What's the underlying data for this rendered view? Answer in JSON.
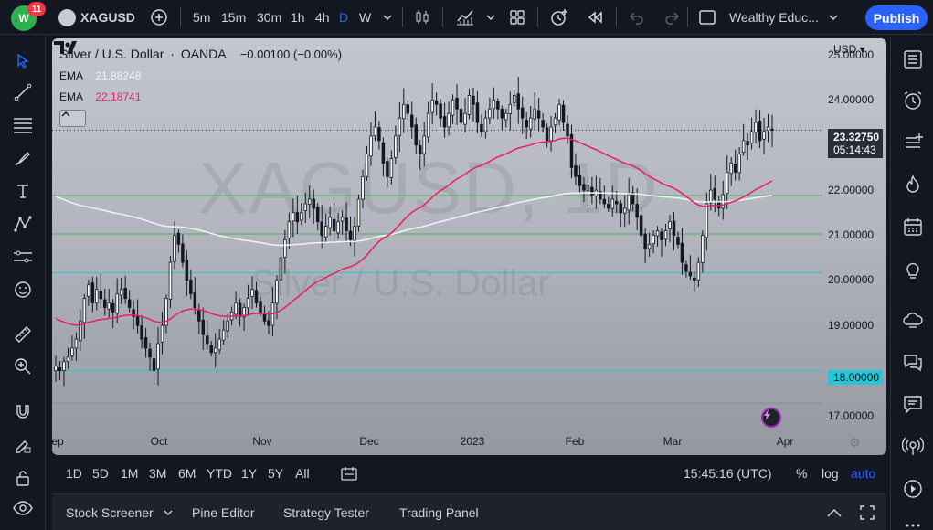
{
  "topbar": {
    "notification_count": "11",
    "symbol": "XAGUSD",
    "timeframes": [
      {
        "label": "5m",
        "active": false
      },
      {
        "label": "15m",
        "active": false
      },
      {
        "label": "30m",
        "active": false
      },
      {
        "label": "1h",
        "active": false
      },
      {
        "label": "4h",
        "active": false
      },
      {
        "label": "D",
        "active": true
      },
      {
        "label": "W",
        "active": false
      }
    ],
    "layout_name": "Wealthy Educ...",
    "publish_label": "Publish"
  },
  "legend": {
    "title": "Silver / U.S. Dollar",
    "provider": "OANDA",
    "change": "−0.00100 (−0.00%)",
    "ema1_label": "EMA",
    "ema1_value": "21.88248",
    "ema2_label": "EMA",
    "ema2_value": "22.18741"
  },
  "price_axis": {
    "currency": "USD",
    "labels": [
      "25.00000",
      "24.00000",
      "22.00000",
      "21.00000",
      "20.00000",
      "19.00000",
      "17.00000"
    ],
    "last_price": "23.32750",
    "countdown": "05:14:43",
    "tag_level": "18.00000"
  },
  "time_axis": {
    "labels": [
      "Sep",
      "Oct",
      "Nov",
      "Dec",
      "2023",
      "Feb",
      "Mar",
      "Apr"
    ]
  },
  "watermark": {
    "symbol": "XAGUSD, 1D",
    "description": "Silver / U.S. Dollar"
  },
  "range_bar": {
    "ranges": [
      "1D",
      "5D",
      "1M",
      "3M",
      "6M",
      "YTD",
      "1Y",
      "5Y",
      "All"
    ],
    "clock": "15:45:16 (UTC)",
    "percent": "%",
    "log": "log",
    "auto": "auto"
  },
  "panel_tabs": [
    "Stock Screener",
    "Pine Editor",
    "Strategy Tester",
    "Trading Panel"
  ],
  "colors": {
    "accent": "#2962ff",
    "ema_fast": "#f0f3fa",
    "ema_slow": "#e91e63",
    "level_green": "#4caf50",
    "level_cyan": "#26c6da"
  },
  "chart_data": {
    "type": "candlestick",
    "symbol": "XAGUSD",
    "interval": "1D",
    "ylim": [
      16.6,
      25.2
    ],
    "horizontal_levels": [
      {
        "price": 21.88,
        "color": "#4caf50"
      },
      {
        "price": 21.03,
        "color": "#4caf50"
      },
      {
        "price": 20.17,
        "color": "#26c6da"
      },
      {
        "price": 18.0,
        "color": "#26c6da"
      }
    ],
    "closes": [
      18.1,
      18.0,
      18.2,
      18.3,
      18.5,
      18.7,
      19.1,
      19.6,
      19.9,
      19.5,
      19.8,
      19.6,
      19.4,
      19.5,
      19.3,
      19.7,
      19.8,
      19.6,
      19.4,
      19.2,
      19.0,
      18.7,
      18.5,
      18.3,
      18.0,
      18.6,
      19.0,
      19.6,
      20.4,
      21.0,
      20.8,
      20.4,
      20.0,
      19.7,
      19.4,
      19.1,
      18.8,
      18.6,
      18.4,
      18.5,
      18.7,
      18.9,
      19.1,
      19.3,
      19.5,
      19.2,
      19.4,
      19.6,
      19.8,
      19.5,
      19.3,
      19.1,
      19.0,
      19.5,
      20.0,
      20.5,
      20.9,
      21.3,
      21.5,
      21.3,
      21.5,
      21.7,
      21.8,
      21.6,
      21.3,
      21.0,
      21.2,
      21.4,
      21.1,
      21.3,
      21.4,
      21.1,
      20.9,
      21.2,
      21.8,
      22.3,
      22.8,
      23.2,
      23.4,
      23.1,
      22.6,
      22.3,
      22.7,
      23.2,
      23.6,
      23.9,
      23.7,
      23.4,
      23.0,
      22.8,
      23.2,
      23.7,
      24.0,
      23.9,
      23.6,
      23.4,
      23.7,
      24.0,
      23.8,
      23.5,
      23.7,
      24.1,
      23.9,
      23.5,
      23.3,
      23.6,
      23.8,
      24.0,
      23.8,
      23.6,
      23.7,
      23.9,
      24.1,
      23.8,
      23.6,
      23.4,
      23.6,
      23.8,
      23.6,
      23.4,
      23.1,
      23.4,
      23.6,
      23.9,
      23.5,
      23.2,
      22.5,
      22.3,
      22.1,
      22.0,
      22.1,
      21.9,
      22.0,
      21.8,
      21.7,
      21.6,
      21.8,
      21.7,
      21.5,
      21.6,
      21.9,
      21.7,
      21.4,
      21.0,
      20.7,
      20.8,
      21.0,
      21.1,
      20.9,
      21.1,
      21.3,
      21.0,
      20.8,
      20.4,
      20.2,
      20.1,
      20.0,
      20.4,
      21.0,
      21.7,
      22.0,
      21.8,
      21.6,
      21.9,
      22.4,
      22.6,
      22.4,
      22.8,
      23.1,
      23.0,
      23.3,
      23.5,
      23.1,
      23.3,
      23.4,
      23.33
    ],
    "series": [
      {
        "name": "EMA",
        "value": 21.88248
      },
      {
        "name": "EMA",
        "value": 22.18741
      }
    ]
  }
}
